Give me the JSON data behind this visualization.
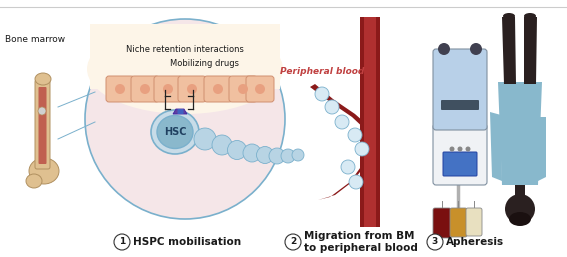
{
  "bg_color": "#ffffff",
  "section1_label": "HSPC mobilisation",
  "section2_label": "Migration from BM\nto peripheral blood",
  "section3_label": "Apheresis",
  "circle_fill": "#f5e6e8",
  "circle_fill2": "#fdf0f0",
  "circle_edge": "#7ab0cc",
  "hsc_outer_fill": "#c8dce8",
  "hsc_outer_edge": "#7ab0cc",
  "hsc_inner_fill": "#8ab8cc",
  "hsc_label": "HSC",
  "niche_cell_fill": "#f0c0a0",
  "niche_cell_edge": "#d09070",
  "niche_bg": "#fdf5e8",
  "bone_color": "#dfc090",
  "bone_edge": "#b09060",
  "marrow_color": "#c06050",
  "blood_dark": "#8b1a1a",
  "blood_mid": "#a02020",
  "bubble_fill": "#b8d4e4",
  "bubble_edge": "#7ab0cc",
  "mobilizing_text": "Mobilizing drugs",
  "niche_text": "Niche retention interactions",
  "bone_marrow_text": "Bone marrow",
  "peripheral_blood_text": "Peripheral blood",
  "step_circle_color": "#ffffff",
  "step_circle_edge": "#333333",
  "text_color": "#1a1a1a",
  "red_label_color": "#c04040",
  "machine_body": "#e8eef4",
  "machine_lower": "#b8d0e8",
  "machine_edge": "#8090a0",
  "patient_skin": "#2a2020",
  "patient_gown": "#88b8cc"
}
